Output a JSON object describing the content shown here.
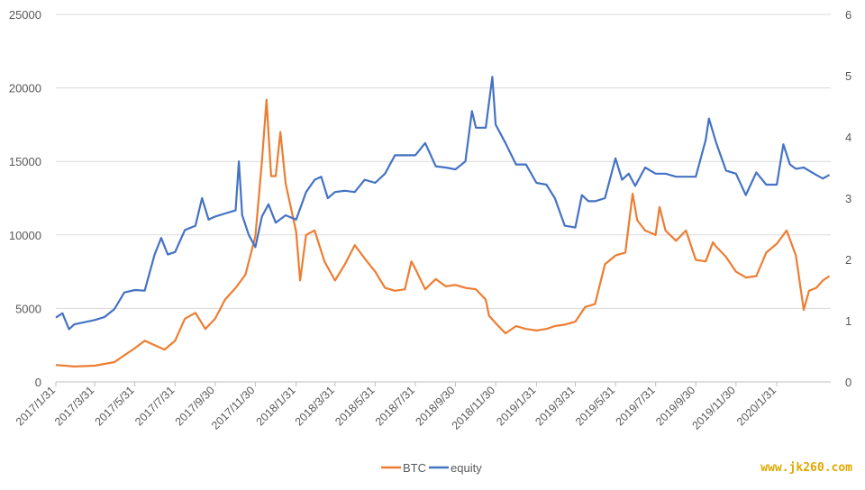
{
  "chart_data": {
    "type": "line",
    "title": "",
    "xlabel": "",
    "ylabel": "",
    "x_tick_labels": [
      "2017/1/31",
      "2017/3/31",
      "2017/5/31",
      "2017/7/31",
      "2017/9/30",
      "2017/11/30",
      "2018/1/31",
      "2018/3/31",
      "2018/5/31",
      "2018/7/31",
      "2018/9/30",
      "2018/11/30",
      "2019/1/31",
      "2019/3/31",
      "2019/5/31",
      "2019/7/31",
      "2019/9/30",
      "2019/11/30",
      "2020/1/31"
    ],
    "y_left": {
      "ticks": [
        "0",
        "5000",
        "10000",
        "15000",
        "20000",
        "25000"
      ],
      "ylim": [
        0,
        25000
      ]
    },
    "y_right": {
      "ticks": [
        "0",
        "1",
        "2",
        "3",
        "4",
        "5",
        "6"
      ],
      "ylim": [
        0,
        6
      ]
    },
    "grid": "horizontal",
    "legend_position": "bottom-center",
    "series": [
      {
        "name": "BTC",
        "axis": "left",
        "color": "#ED7D31",
        "points": [
          [
            "2017/1/31",
            1150
          ],
          [
            "2017/2/28",
            1050
          ],
          [
            "2017/3/31",
            1100
          ],
          [
            "2017/4/30",
            1350
          ],
          [
            "2017/5/31",
            2300
          ],
          [
            "2017/6/15",
            2800
          ],
          [
            "2017/6/30",
            2500
          ],
          [
            "2017/7/15",
            2200
          ],
          [
            "2017/7/31",
            2800
          ],
          [
            "2017/8/15",
            4300
          ],
          [
            "2017/8/31",
            4700
          ],
          [
            "2017/9/15",
            3600
          ],
          [
            "2017/9/30",
            4300
          ],
          [
            "2017/10/15",
            5600
          ],
          [
            "2017/10/31",
            6400
          ],
          [
            "2017/11/15",
            7300
          ],
          [
            "2017/11/30",
            9900
          ],
          [
            "2017/12/10",
            15000
          ],
          [
            "2017/12/17",
            19200
          ],
          [
            "2017/12/24",
            14000
          ],
          [
            "2017/12/31",
            14000
          ],
          [
            "2018/1/7",
            17000
          ],
          [
            "2018/1/15",
            13500
          ],
          [
            "2018/1/31",
            10200
          ],
          [
            "2018/2/6",
            6900
          ],
          [
            "2018/2/15",
            10000
          ],
          [
            "2018/2/28",
            10300
          ],
          [
            "2018/3/15",
            8200
          ],
          [
            "2018/3/31",
            6900
          ],
          [
            "2018/4/15",
            8000
          ],
          [
            "2018/4/30",
            9300
          ],
          [
            "2018/5/15",
            8400
          ],
          [
            "2018/5/31",
            7500
          ],
          [
            "2018/6/15",
            6400
          ],
          [
            "2018/6/30",
            6200
          ],
          [
            "2018/7/15",
            6300
          ],
          [
            "2018/7/25",
            8200
          ],
          [
            "2018/7/31",
            7700
          ],
          [
            "2018/8/15",
            6300
          ],
          [
            "2018/8/31",
            7000
          ],
          [
            "2018/9/15",
            6500
          ],
          [
            "2018/9/30",
            6600
          ],
          [
            "2018/10/15",
            6400
          ],
          [
            "2018/10/31",
            6300
          ],
          [
            "2018/11/15",
            5600
          ],
          [
            "2018/11/20",
            4500
          ],
          [
            "2018/11/30",
            4000
          ],
          [
            "2018/12/15",
            3300
          ],
          [
            "2018/12/31",
            3800
          ],
          [
            "2019/1/15",
            3600
          ],
          [
            "2019/1/31",
            3500
          ],
          [
            "2019/2/15",
            3600
          ],
          [
            "2019/2/28",
            3800
          ],
          [
            "2019/3/15",
            3900
          ],
          [
            "2019/3/31",
            4100
          ],
          [
            "2019/4/15",
            5100
          ],
          [
            "2019/4/30",
            5300
          ],
          [
            "2019/5/15",
            8000
          ],
          [
            "2019/5/31",
            8600
          ],
          [
            "2019/6/15",
            8800
          ],
          [
            "2019/6/26",
            12800
          ],
          [
            "2019/7/3",
            11000
          ],
          [
            "2019/7/15",
            10300
          ],
          [
            "2019/7/31",
            10000
          ],
          [
            "2019/8/6",
            11900
          ],
          [
            "2019/8/15",
            10300
          ],
          [
            "2019/8/31",
            9600
          ],
          [
            "2019/9/15",
            10300
          ],
          [
            "2019/9/30",
            8300
          ],
          [
            "2019/10/15",
            8200
          ],
          [
            "2019/10/26",
            9500
          ],
          [
            "2019/10/31",
            9200
          ],
          [
            "2019/11/15",
            8500
          ],
          [
            "2019/11/30",
            7500
          ],
          [
            "2019/12/15",
            7100
          ],
          [
            "2019/12/31",
            7200
          ],
          [
            "2020/1/15",
            8800
          ],
          [
            "2020/1/31",
            9400
          ],
          [
            "2020/2/15",
            10300
          ],
          [
            "2020/2/29",
            8600
          ],
          [
            "2020/3/12",
            4900
          ],
          [
            "2020/3/20",
            6200
          ],
          [
            "2020/3/31",
            6400
          ],
          [
            "2020/4/10",
            6900
          ],
          [
            "2020/4/20",
            7200
          ]
        ]
      },
      {
        "name": "equity",
        "axis": "right",
        "color": "#4472C4",
        "points": [
          [
            "2017/1/31",
            1.05
          ],
          [
            "2017/2/10",
            1.12
          ],
          [
            "2017/2/20",
            0.86
          ],
          [
            "2017/2/28",
            0.94
          ],
          [
            "2017/3/31",
            1.01
          ],
          [
            "2017/4/15",
            1.06
          ],
          [
            "2017/4/30",
            1.19
          ],
          [
            "2017/5/15",
            1.46
          ],
          [
            "2017/5/31",
            1.5
          ],
          [
            "2017/6/15",
            1.49
          ],
          [
            "2017/6/30",
            2.08
          ],
          [
            "2017/7/10",
            2.35
          ],
          [
            "2017/7/20",
            2.08
          ],
          [
            "2017/7/31",
            2.12
          ],
          [
            "2017/8/15",
            2.48
          ],
          [
            "2017/8/31",
            2.55
          ],
          [
            "2017/9/10",
            3.0
          ],
          [
            "2017/9/20",
            2.65
          ],
          [
            "2017/9/30",
            2.7
          ],
          [
            "2017/10/15",
            2.75
          ],
          [
            "2017/10/31",
            2.8
          ],
          [
            "2017/11/5",
            3.6
          ],
          [
            "2017/11/10",
            2.72
          ],
          [
            "2017/11/20",
            2.4
          ],
          [
            "2017/11/30",
            2.2
          ],
          [
            "2017/12/10",
            2.7
          ],
          [
            "2017/12/20",
            2.9
          ],
          [
            "2017/12/31",
            2.6
          ],
          [
            "2018/1/15",
            2.72
          ],
          [
            "2018/1/31",
            2.65
          ],
          [
            "2018/2/15",
            3.1
          ],
          [
            "2018/2/28",
            3.3
          ],
          [
            "2018/3/10",
            3.35
          ],
          [
            "2018/3/20",
            3.0
          ],
          [
            "2018/3/31",
            3.1
          ],
          [
            "2018/4/15",
            3.12
          ],
          [
            "2018/4/30",
            3.1
          ],
          [
            "2018/5/15",
            3.3
          ],
          [
            "2018/5/31",
            3.25
          ],
          [
            "2018/6/15",
            3.4
          ],
          [
            "2018/6/30",
            3.7
          ],
          [
            "2018/7/15",
            3.7
          ],
          [
            "2018/7/31",
            3.7
          ],
          [
            "2018/8/15",
            3.9
          ],
          [
            "2018/8/31",
            3.52
          ],
          [
            "2018/9/15",
            3.5
          ],
          [
            "2018/9/30",
            3.47
          ],
          [
            "2018/10/15",
            3.6
          ],
          [
            "2018/10/25",
            4.42
          ],
          [
            "2018/10/31",
            4.15
          ],
          [
            "2018/11/15",
            4.15
          ],
          [
            "2018/11/25",
            4.98
          ],
          [
            "2018/11/30",
            4.2
          ],
          [
            "2018/12/15",
            3.9
          ],
          [
            "2018/12/31",
            3.55
          ],
          [
            "2019/1/15",
            3.55
          ],
          [
            "2019/1/31",
            3.25
          ],
          [
            "2019/2/15",
            3.22
          ],
          [
            "2019/2/28",
            3.0
          ],
          [
            "2019/3/15",
            2.55
          ],
          [
            "2019/3/31",
            2.52
          ],
          [
            "2019/4/10",
            3.05
          ],
          [
            "2019/4/20",
            2.95
          ],
          [
            "2019/4/30",
            2.95
          ],
          [
            "2019/5/15",
            3.0
          ],
          [
            "2019/5/31",
            3.65
          ],
          [
            "2019/6/10",
            3.3
          ],
          [
            "2019/6/20",
            3.4
          ],
          [
            "2019/6/30",
            3.2
          ],
          [
            "2019/7/15",
            3.5
          ],
          [
            "2019/7/31",
            3.4
          ],
          [
            "2019/8/15",
            3.4
          ],
          [
            "2019/8/31",
            3.35
          ],
          [
            "2019/9/15",
            3.35
          ],
          [
            "2019/9/30",
            3.35
          ],
          [
            "2019/10/15",
            3.95
          ],
          [
            "2019/10/20",
            4.3
          ],
          [
            "2019/10/31",
            3.9
          ],
          [
            "2019/11/15",
            3.45
          ],
          [
            "2019/11/30",
            3.4
          ],
          [
            "2019/12/15",
            3.05
          ],
          [
            "2019/12/31",
            3.42
          ],
          [
            "2020/1/15",
            3.22
          ],
          [
            "2020/1/31",
            3.22
          ],
          [
            "2020/2/10",
            3.88
          ],
          [
            "2020/2/20",
            3.55
          ],
          [
            "2020/2/29",
            3.48
          ],
          [
            "2020/3/12",
            3.5
          ],
          [
            "2020/3/31",
            3.38
          ],
          [
            "2020/4/10",
            3.32
          ],
          [
            "2020/4/20",
            3.38
          ]
        ]
      }
    ]
  },
  "watermark": "www.jk260.com"
}
